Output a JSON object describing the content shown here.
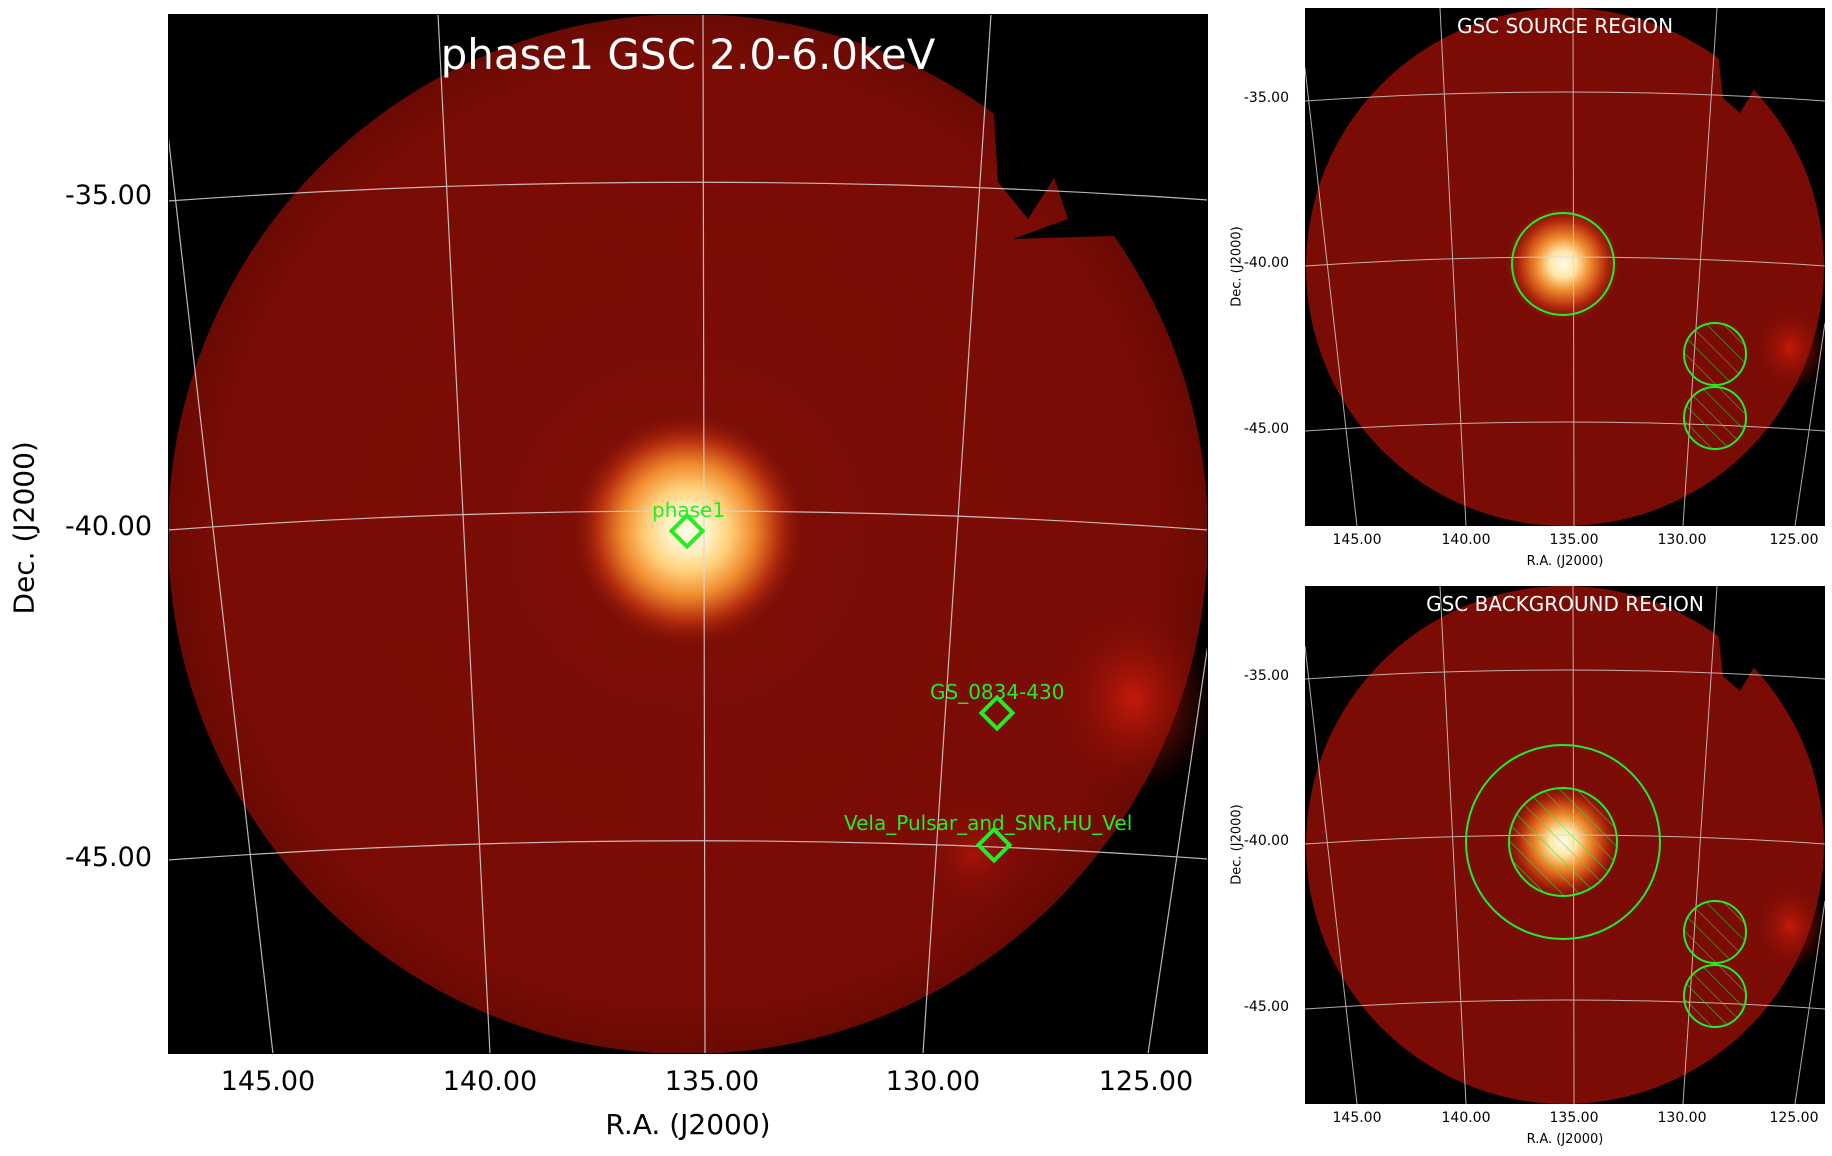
{
  "main": {
    "title": "phase1 GSC 2.0-6.0keV",
    "xlabel": "R.A. (J2000)",
    "ylabel": "Dec. (J2000)",
    "xticks": [
      "145.00",
      "140.00",
      "135.00",
      "130.00",
      "125.00"
    ],
    "yticks": [
      "-35.00",
      "-40.00",
      "-45.00"
    ],
    "sources": [
      {
        "label": "phase1"
      },
      {
        "label": "GS_0834-430"
      },
      {
        "label": "Vela_Pulsar_and_SNR,HU_Vel"
      }
    ]
  },
  "source_panel": {
    "title": "GSC SOURCE REGION",
    "xlabel": "R.A. (J2000)",
    "ylabel": "Dec. (J2000)",
    "xticks": [
      "145.00",
      "140.00",
      "135.00",
      "130.00",
      "125.00"
    ],
    "yticks": [
      "-35.00",
      "-40.00",
      "-45.00"
    ]
  },
  "background_panel": {
    "title": "GSC BACKGROUND REGION",
    "xlabel": "R.A. (J2000)",
    "ylabel": "Dec. (J2000)",
    "xticks": [
      "145.00",
      "140.00",
      "135.00",
      "130.00",
      "125.00"
    ],
    "yticks": [
      "-35.00",
      "-40.00",
      "-45.00"
    ]
  },
  "colors": {
    "background": "#000000",
    "field": "#7a0c05",
    "source_core": "#fff6d8",
    "region": "#22ee22",
    "grid": "#d8d8d8",
    "title_text": "#ffffff"
  }
}
